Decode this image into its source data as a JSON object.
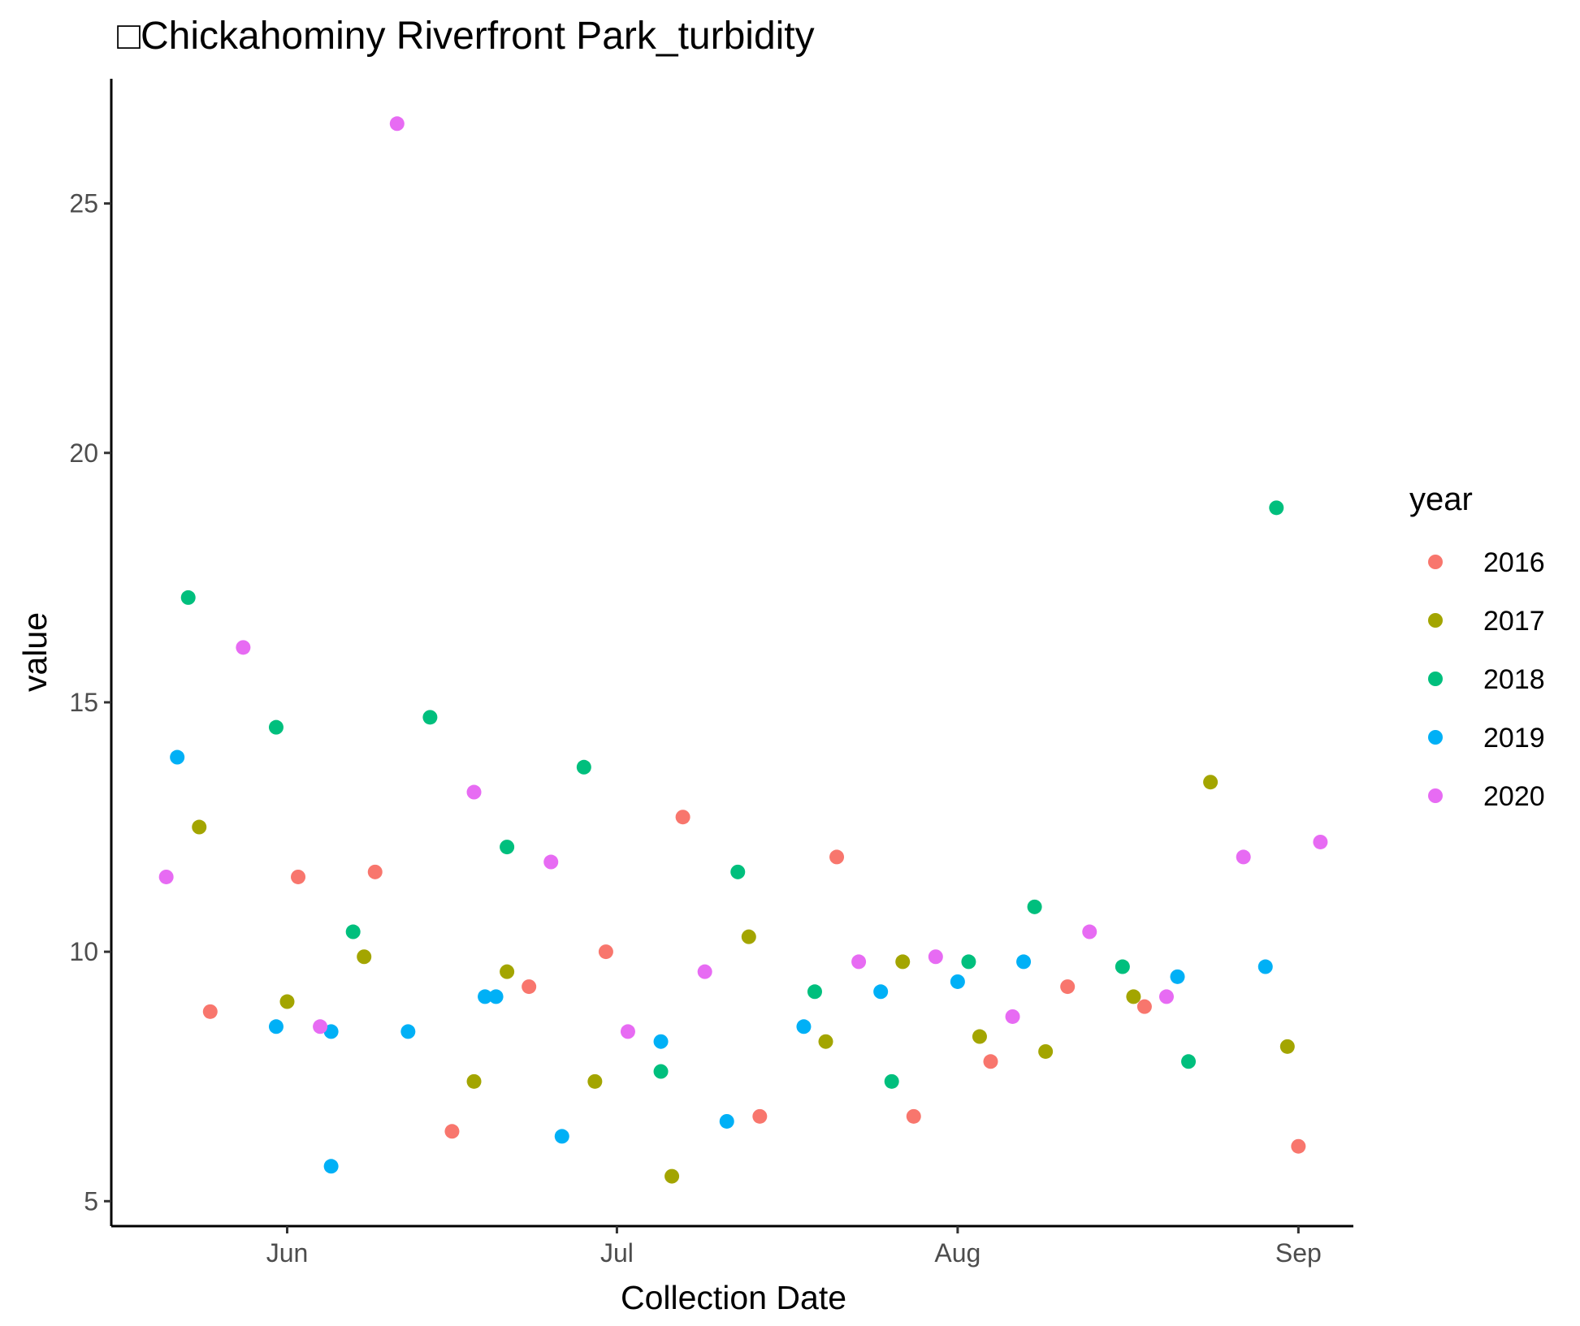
{
  "chart_data": {
    "type": "scatter",
    "title": "□Chickahominy Riverfront Park_turbidity",
    "xlabel": "Collection Date",
    "ylabel": "value",
    "x_type": "date",
    "xlim": [
      "2000-05-16",
      "2000-09-06"
    ],
    "ylim": [
      4.5,
      27.5
    ],
    "x_ticks": [
      {
        "label": "Jun",
        "value": "2000-06-01"
      },
      {
        "label": "Jul",
        "value": "2000-07-01"
      },
      {
        "label": "Aug",
        "value": "2000-08-01"
      },
      {
        "label": "Sep",
        "value": "2000-09-01"
      }
    ],
    "y_ticks": [
      5,
      10,
      15,
      20,
      25
    ],
    "grid": false,
    "legend": {
      "title": "year",
      "position": "right"
    },
    "series": [
      {
        "name": "2016",
        "color": "#F8766D",
        "points": [
          {
            "x": "2000-05-25",
            "y": 8.8
          },
          {
            "x": "2000-06-02",
            "y": 11.5
          },
          {
            "x": "2000-06-09",
            "y": 11.6
          },
          {
            "x": "2000-06-16",
            "y": 6.4
          },
          {
            "x": "2000-06-23",
            "y": 9.3
          },
          {
            "x": "2000-06-30",
            "y": 10.0
          },
          {
            "x": "2000-07-07",
            "y": 12.7
          },
          {
            "x": "2000-07-14",
            "y": 6.7
          },
          {
            "x": "2000-07-21",
            "y": 11.9
          },
          {
            "x": "2000-07-28",
            "y": 6.7
          },
          {
            "x": "2000-08-04",
            "y": 7.8
          },
          {
            "x": "2000-08-11",
            "y": 9.3
          },
          {
            "x": "2000-08-18",
            "y": 8.9
          },
          {
            "x": "2000-09-01",
            "y": 6.1
          }
        ]
      },
      {
        "name": "2017",
        "color": "#A3A500",
        "points": [
          {
            "x": "2000-05-24",
            "y": 12.5
          },
          {
            "x": "2000-06-01",
            "y": 9.0
          },
          {
            "x": "2000-06-08",
            "y": 9.9
          },
          {
            "x": "2000-06-18",
            "y": 7.4
          },
          {
            "x": "2000-06-21",
            "y": 9.6
          },
          {
            "x": "2000-06-29",
            "y": 7.4
          },
          {
            "x": "2000-07-06",
            "y": 5.5
          },
          {
            "x": "2000-07-13",
            "y": 10.3
          },
          {
            "x": "2000-07-20",
            "y": 8.2
          },
          {
            "x": "2000-07-27",
            "y": 9.8
          },
          {
            "x": "2000-08-03",
            "y": 8.3
          },
          {
            "x": "2000-08-09",
            "y": 8.0
          },
          {
            "x": "2000-08-17",
            "y": 9.1
          },
          {
            "x": "2000-08-24",
            "y": 13.4
          },
          {
            "x": "2000-08-31",
            "y": 8.1
          }
        ]
      },
      {
        "name": "2018",
        "color": "#00BF7D",
        "points": [
          {
            "x": "2000-05-23",
            "y": 17.1
          },
          {
            "x": "2000-05-31",
            "y": 14.5
          },
          {
            "x": "2000-06-07",
            "y": 10.4
          },
          {
            "x": "2000-06-14",
            "y": 14.7
          },
          {
            "x": "2000-06-21",
            "y": 12.1
          },
          {
            "x": "2000-06-28",
            "y": 13.7
          },
          {
            "x": "2000-07-05",
            "y": 7.6
          },
          {
            "x": "2000-07-12",
            "y": 11.6
          },
          {
            "x": "2000-07-19",
            "y": 9.2
          },
          {
            "x": "2000-07-26",
            "y": 7.4
          },
          {
            "x": "2000-08-02",
            "y": 9.8
          },
          {
            "x": "2000-08-08",
            "y": 10.9
          },
          {
            "x": "2000-08-16",
            "y": 9.7
          },
          {
            "x": "2000-08-22",
            "y": 7.8
          },
          {
            "x": "2000-08-30",
            "y": 18.9
          }
        ]
      },
      {
        "name": "2019",
        "color": "#00B0F6",
        "points": [
          {
            "x": "2000-05-22",
            "y": 13.9
          },
          {
            "x": "2000-05-31",
            "y": 8.5
          },
          {
            "x": "2000-06-05",
            "y": 8.4
          },
          {
            "x": "2000-06-05",
            "y": 5.7
          },
          {
            "x": "2000-06-12",
            "y": 8.4
          },
          {
            "x": "2000-06-19",
            "y": 9.1
          },
          {
            "x": "2000-06-20",
            "y": 9.1
          },
          {
            "x": "2000-06-26",
            "y": 6.3
          },
          {
            "x": "2000-07-05",
            "y": 8.2
          },
          {
            "x": "2000-07-11",
            "y": 6.6
          },
          {
            "x": "2000-07-18",
            "y": 8.5
          },
          {
            "x": "2000-07-25",
            "y": 9.2
          },
          {
            "x": "2000-08-01",
            "y": 9.4
          },
          {
            "x": "2000-08-07",
            "y": 9.8
          },
          {
            "x": "2000-08-21",
            "y": 9.5
          },
          {
            "x": "2000-08-29",
            "y": 9.7
          }
        ]
      },
      {
        "name": "2020",
        "color": "#E76BF3",
        "points": [
          {
            "x": "2000-05-21",
            "y": 11.5
          },
          {
            "x": "2000-05-28",
            "y": 16.1
          },
          {
            "x": "2000-06-04",
            "y": 8.5
          },
          {
            "x": "2000-06-11",
            "y": 26.6
          },
          {
            "x": "2000-06-18",
            "y": 13.2
          },
          {
            "x": "2000-06-25",
            "y": 11.8
          },
          {
            "x": "2000-07-02",
            "y": 8.4
          },
          {
            "x": "2000-07-09",
            "y": 9.6
          },
          {
            "x": "2000-07-23",
            "y": 9.8
          },
          {
            "x": "2000-07-30",
            "y": 9.9
          },
          {
            "x": "2000-08-06",
            "y": 8.7
          },
          {
            "x": "2000-08-13",
            "y": 10.4
          },
          {
            "x": "2000-08-20",
            "y": 9.1
          },
          {
            "x": "2000-08-27",
            "y": 11.9
          },
          {
            "x": "2000-09-03",
            "y": 12.2
          }
        ]
      }
    ]
  }
}
